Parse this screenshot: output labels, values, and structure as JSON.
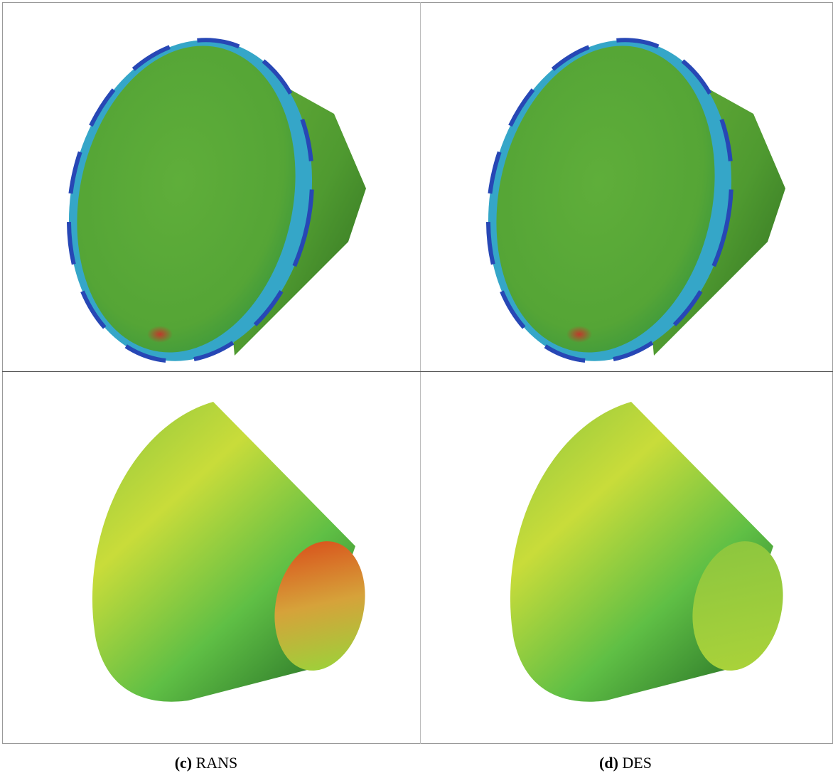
{
  "captions": [
    {
      "label": "(c)",
      "text": "RANS"
    },
    {
      "label": "(d)",
      "text": "DES"
    }
  ]
}
